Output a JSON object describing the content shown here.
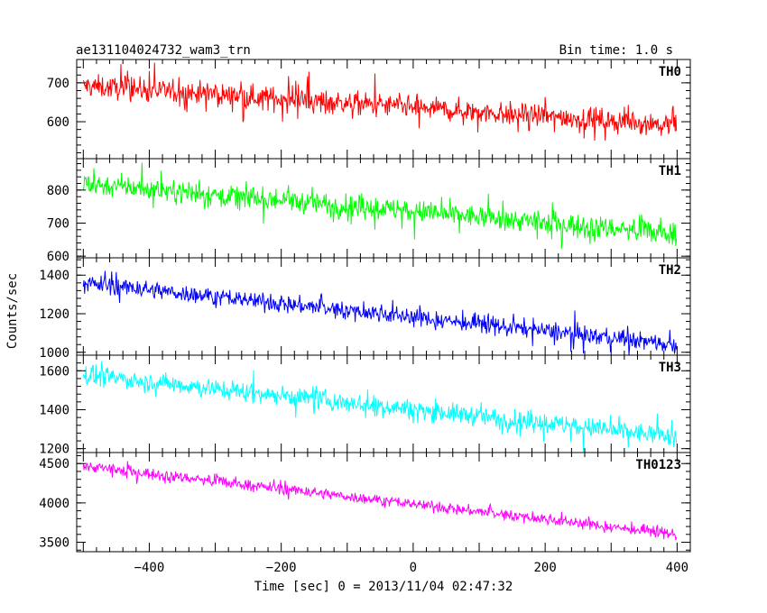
{
  "header": {
    "title": "ae131104024732_wam3_trn",
    "bin_time": "Bin time: 1.0 s"
  },
  "chart_data": {
    "type": "line",
    "title": "ae131104024732_wam3_trn",
    "xlabel": "Time [sec] 0 = 2013/11/04 02:47:32",
    "ylabel": "Counts/sec",
    "xlim": [
      -510,
      420
    ],
    "x_ticks": [
      -400,
      -200,
      0,
      200,
      400
    ],
    "x_tick_labels": [
      "−400",
      "−200",
      "0",
      "200",
      "400"
    ],
    "grid": false,
    "panels": [
      {
        "name": "TH0",
        "color": "#ff0000",
        "ylim": [
          505,
          760
        ],
        "yticks": [
          600,
          700
        ],
        "start": 692,
        "end": 592,
        "noise": 26,
        "spike": 55
      },
      {
        "name": "TH1",
        "color": "#00ff00",
        "ylim": [
          595,
          895
        ],
        "yticks": [
          600,
          700,
          800
        ],
        "start": 820,
        "end": 668,
        "noise": 30,
        "spike": 60
      },
      {
        "name": "TH2",
        "color": "#0000ff",
        "ylim": [
          985,
          1490
        ],
        "yticks": [
          1000,
          1200,
          1400
        ],
        "start": 1360,
        "end": 1040,
        "noise": 40,
        "spike": 80
      },
      {
        "name": "TH3",
        "color": "#00ffff",
        "ylim": [
          1180,
          1680
        ],
        "yticks": [
          1200,
          1400,
          1600
        ],
        "start": 1580,
        "end": 1260,
        "noise": 45,
        "spike": 90
      },
      {
        "name": "TH0123",
        "color": "#ff00ff",
        "ylim": [
          3380,
          4640
        ],
        "yticks": [
          3500,
          4000,
          4500
        ],
        "start": 4470,
        "end": 3600,
        "noise": 60,
        "spike": 120
      }
    ],
    "x_range_data": [
      -500,
      399
    ]
  }
}
